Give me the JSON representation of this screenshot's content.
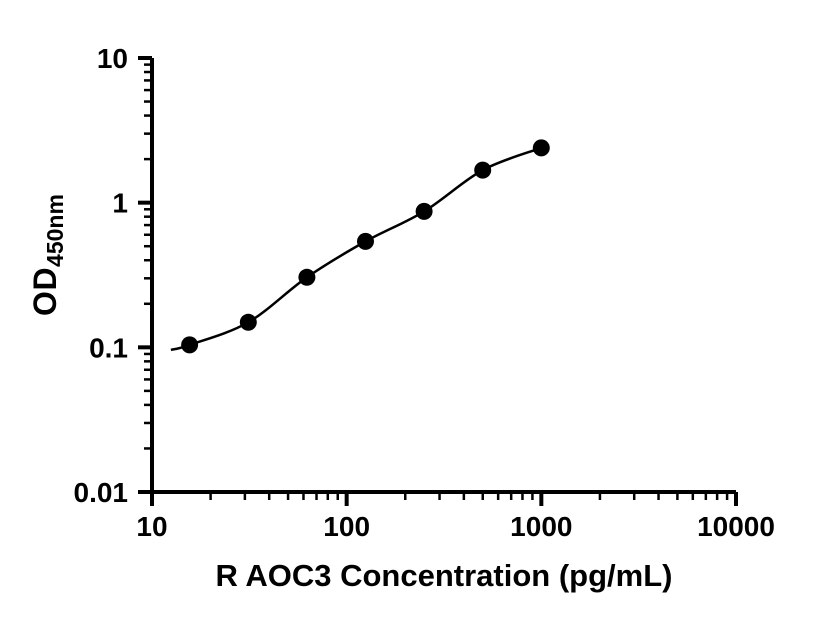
{
  "page": {
    "background_color": "#ffffff"
  },
  "chart_data": {
    "type": "scatter",
    "description": "ELISA standard curve, log-log axes, filled black circles with fitted smooth curve",
    "title": "",
    "xlabel": "R AOC3 Concentration (pg/mL)",
    "ylabel": "OD450nm",
    "ylabel_main": "OD",
    "ylabel_sub": "450nm",
    "x_scale": "log10",
    "y_scale": "log10",
    "xlim": [
      10,
      10000
    ],
    "ylim": [
      0.01,
      10
    ],
    "x_tick_labels": [
      "10",
      "100",
      "1000",
      "10000"
    ],
    "y_tick_labels": [
      "0.01",
      "0.1",
      "1",
      "10"
    ],
    "grid": false,
    "legend": "none",
    "axis_color": "#000000",
    "marker_color": "#000000",
    "curve_color": "#000000",
    "series": [
      {
        "name": "standard-curve",
        "marker": "filled-circle",
        "fit_curve": true,
        "points": [
          {
            "x": 15.6,
            "y": 0.104
          },
          {
            "x": 31.25,
            "y": 0.149
          },
          {
            "x": 62.5,
            "y": 0.305
          },
          {
            "x": 125,
            "y": 0.54
          },
          {
            "x": 250,
            "y": 0.87
          },
          {
            "x": 500,
            "y": 1.68
          },
          {
            "x": 1000,
            "y": 2.39
          }
        ]
      }
    ]
  }
}
